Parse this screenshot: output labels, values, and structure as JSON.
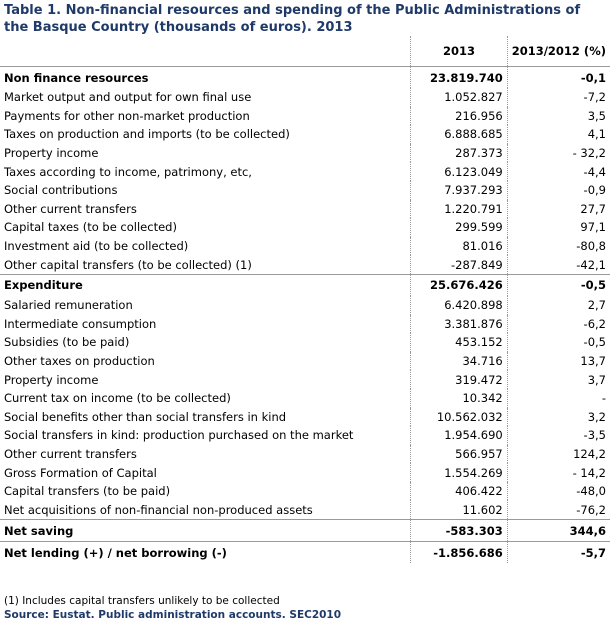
{
  "title": "Table 1. Non-financial resources and spending of the Public Administrations of the Basque Country (thousands of euros). 2013",
  "table": {
    "columns": [
      "2013",
      "2013/2012 (%)"
    ],
    "sections": [
      {
        "total": [
          "Non finance resources",
          "23.819.740",
          "-0,1"
        ],
        "items": [
          [
            "Market output and output for own final use",
            "1.052.827",
            "-7,2"
          ],
          [
            "Payments for other non-market production",
            "216.956",
            "3,5"
          ],
          [
            "Taxes on production and imports (to be collected)",
            "6.888.685",
            "4,1"
          ],
          [
            "Property income",
            "287.373",
            "- 32,2"
          ],
          [
            "Taxes according to income, patrimony, etc,",
            "6.123.049",
            "-4,4"
          ],
          [
            "Social contributions",
            "7.937.293",
            "-0,9"
          ],
          [
            "Other current transfers",
            "1.220.791",
            "27,7"
          ],
          [
            "Capital taxes (to be collected)",
            "299.599",
            "97,1"
          ],
          [
            "Investment aid (to be collected)",
            "81.016",
            "-80,8"
          ],
          [
            "Other capital transfers (to be collected) (1)",
            "-287.849",
            "-42,1"
          ]
        ]
      },
      {
        "total": [
          "Expenditure",
          "25.676.426",
          "-0,5"
        ],
        "items": [
          [
            "Salaried remuneration",
            "6.420.898",
            "2,7"
          ],
          [
            "Intermediate consumption",
            "3.381.876",
            "-6,2"
          ],
          [
            "Subsidies (to be paid)",
            "453.152",
            "-0,5"
          ],
          [
            "Other taxes on production",
            "34.716",
            "13,7"
          ],
          [
            "Property income",
            "319.472",
            "3,7"
          ],
          [
            "Current tax on income (to be collected)",
            "10.342",
            "-"
          ],
          [
            "Social benefits other than social transfers in kind",
            "10.562.032",
            "3,2"
          ],
          [
            "Social transfers in kind: production purchased on the market",
            "1.954.690",
            "-3,5"
          ],
          [
            "Other current transfers",
            "566.957",
            "124,2"
          ],
          [
            "Gross Formation of Capital",
            "1.554.269",
            "- 14,2"
          ],
          [
            "Capital transfers (to be paid)",
            "406.422",
            "-48,0"
          ],
          [
            "Net acquisitions of non-financial non-produced assets",
            "11.602",
            "-76,2"
          ]
        ]
      },
      {
        "total": [
          "Net saving",
          "-583.303",
          "344,6"
        ],
        "items": []
      },
      {
        "total": [
          "Net lending (+) / net borrowing (-)",
          "-1.856.686",
          "-5,7"
        ],
        "items": []
      }
    ]
  },
  "footnote": "(1) Includes capital transfers unlikely to be collected",
  "source": "Source: Eustat. Public administration accounts. SEC2010"
}
